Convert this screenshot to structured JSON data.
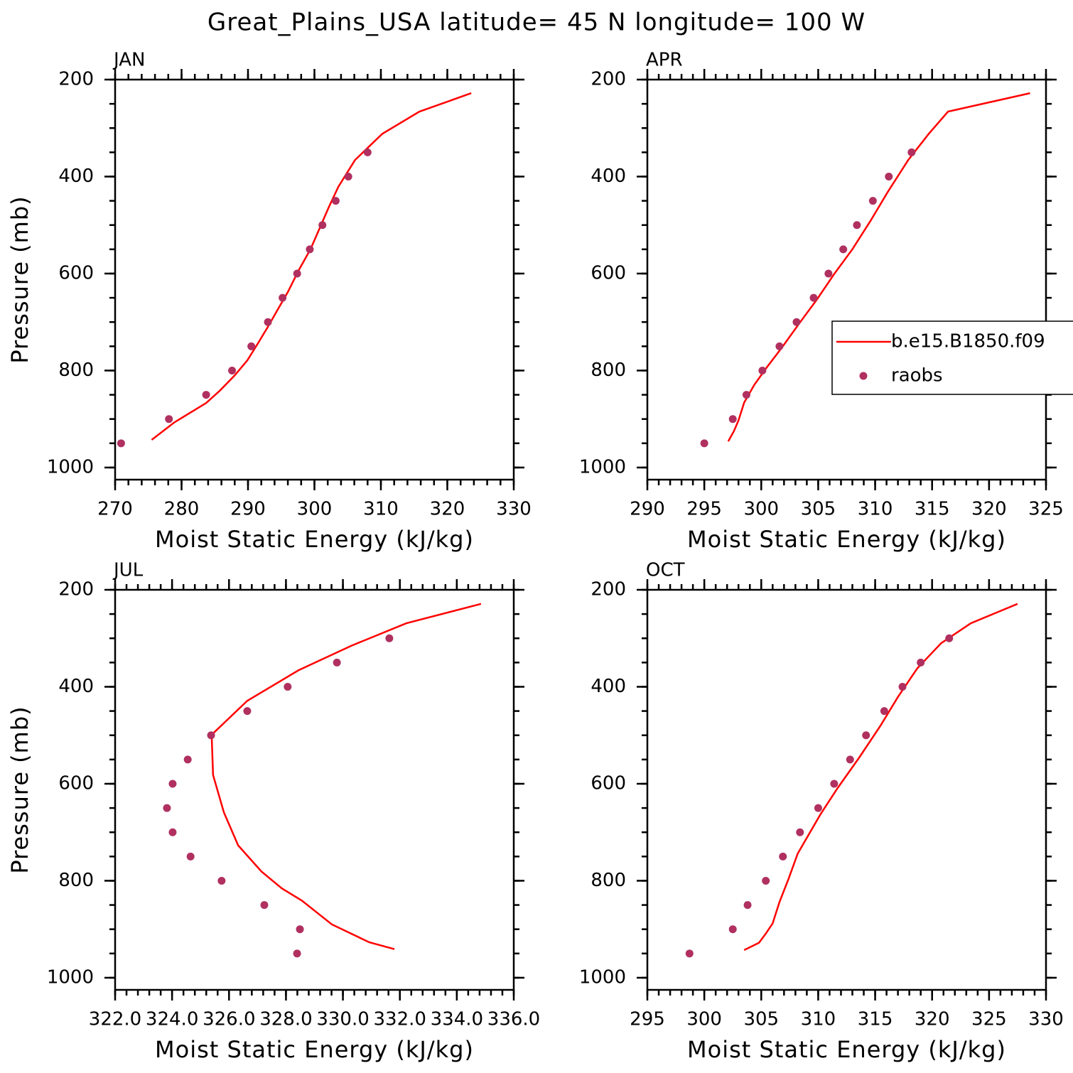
{
  "title": "Great_Plains_USA  latitude= 45 N longitude= 100 W",
  "chart_data": [
    {
      "type": "line",
      "title": "JAN",
      "xlabel": "Moist Static Energy (kJ/kg)",
      "ylabel": "Pressure (mb)",
      "xlim": [
        270,
        330
      ],
      "xticks": [
        270,
        280,
        290,
        300,
        310,
        320,
        330
      ],
      "xminor": 2,
      "ylim": [
        200,
        1025
      ],
      "yticks": [
        200,
        400,
        600,
        800,
        1000
      ],
      "yminor": 50,
      "y_inverted": true,
      "series": [
        {
          "type": "line",
          "color": "#ff0000",
          "x": [
            275.5,
            278.9,
            283.7,
            285.8,
            288.0,
            289.9,
            291.4,
            292.9,
            294.4,
            296.0,
            297.6,
            299.4,
            300.8,
            302.2,
            303.6,
            306.1,
            310.2,
            315.8,
            323.6
          ],
          "values": [
            943,
            907,
            867,
            841,
            810,
            779,
            746,
            712,
            676,
            638,
            594,
            550,
            506,
            462,
            421,
            366,
            312,
            266,
            228
          ]
        },
        {
          "type": "scatter",
          "color": "#b03060",
          "x": [
            270.9,
            278.1,
            283.7,
            287.6,
            290.5,
            293.0,
            295.2,
            297.4,
            299.3,
            301.2,
            303.2,
            305.1,
            308.0
          ],
          "values": [
            950,
            900,
            850,
            800,
            750,
            700,
            650,
            600,
            550,
            500,
            450,
            400,
            350
          ]
        }
      ]
    },
    {
      "type": "line",
      "title": "APR",
      "xlabel": "Moist Static Energy (kJ/kg)",
      "xlim": [
        290,
        325
      ],
      "xticks": [
        290,
        295,
        300,
        305,
        310,
        315,
        320,
        325
      ],
      "xminor": 1,
      "ylim": [
        200,
        1025
      ],
      "yticks": [
        200,
        400,
        600,
        800,
        1000
      ],
      "yminor": 50,
      "y_inverted": true,
      "legend": "right",
      "series": [
        {
          "type": "line",
          "name": "b.e15.B1850.f09",
          "color": "#ff0000",
          "x": [
            297.1,
            297.6,
            298.0,
            298.5,
            299.4,
            300.5,
            301.8,
            303.3,
            304.9,
            306.4,
            308.0,
            309.6,
            311.1,
            312.9,
            314.7,
            316.4,
            323.6
          ],
          "values": [
            946,
            925,
            903,
            866,
            829,
            793,
            753,
            704,
            653,
            601,
            550,
            491,
            432,
            366,
            312,
            266,
            228
          ]
        },
        {
          "type": "scatter",
          "name": "raobs",
          "color": "#b03060",
          "x": [
            295.0,
            297.5,
            298.7,
            300.1,
            301.6,
            303.1,
            304.6,
            305.9,
            307.2,
            308.4,
            309.8,
            311.2,
            313.2
          ],
          "values": [
            950,
            900,
            850,
            800,
            750,
            700,
            650,
            600,
            550,
            500,
            450,
            400,
            350
          ]
        }
      ]
    },
    {
      "type": "line",
      "title": "JUL",
      "xlabel": "Moist Static Energy (kJ/kg)",
      "ylabel": "Pressure (mb)",
      "xlim": [
        322,
        336
      ],
      "xticks": [
        {
          "value": 322,
          "label": "322.0"
        },
        {
          "value": 324,
          "label": "324.0"
        },
        {
          "value": 326,
          "label": "326.0"
        },
        {
          "value": 328,
          "label": "328.0"
        },
        {
          "value": 330,
          "label": "330.0"
        },
        {
          "value": 332,
          "label": "332.0"
        },
        {
          "value": 334,
          "label": "334.0"
        },
        {
          "value": 336,
          "label": "336.0"
        }
      ],
      "xminor": 0.4,
      "ylim": [
        200,
        1025
      ],
      "yticks": [
        200,
        400,
        600,
        800,
        1000
      ],
      "yminor": 50,
      "y_inverted": true,
      "series": [
        {
          "type": "line",
          "color": "#ff0000",
          "x": [
            331.81,
            330.93,
            329.61,
            328.56,
            327.86,
            327.14,
            326.32,
            325.82,
            325.44,
            325.39,
            326.64,
            328.44,
            330.31,
            332.23,
            334.85
          ],
          "values": [
            941,
            927,
            890,
            841,
            816,
            781,
            727,
            659,
            582,
            499,
            429,
            366,
            315,
            269,
            229
          ]
        },
        {
          "type": "scatter",
          "color": "#b03060",
          "x": [
            328.39,
            328.49,
            327.24,
            325.74,
            324.65,
            324.02,
            323.82,
            324.02,
            324.55,
            325.37,
            326.64,
            328.06,
            329.79,
            331.63
          ],
          "values": [
            950,
            900,
            850,
            800,
            750,
            700,
            650,
            600,
            550,
            500,
            450,
            400,
            350,
            300
          ]
        }
      ]
    },
    {
      "type": "line",
      "title": "OCT",
      "xlabel": "Moist Static Energy (kJ/kg)",
      "xlim": [
        295,
        330
      ],
      "xticks": [
        295,
        300,
        305,
        310,
        315,
        320,
        325,
        330
      ],
      "xminor": 1,
      "ylim": [
        200,
        1025
      ],
      "yticks": [
        200,
        400,
        600,
        800,
        1000
      ],
      "yminor": 50,
      "y_inverted": true,
      "series": [
        {
          "type": "line",
          "color": "#ff0000",
          "x": [
            303.5,
            304.8,
            305.4,
            306.0,
            306.6,
            307.4,
            308.2,
            310.2,
            311.7,
            313.6,
            315.5,
            317.0,
            318.7,
            320.8,
            323.4,
            327.5
          ],
          "values": [
            943,
            928,
            909,
            888,
            844,
            796,
            744,
            663,
            609,
            546,
            479,
            421,
            362,
            310,
            269,
            229
          ]
        },
        {
          "type": "scatter",
          "color": "#b03060",
          "x": [
            298.7,
            302.5,
            303.8,
            305.4,
            306.9,
            308.4,
            310.0,
            311.4,
            312.8,
            314.2,
            315.8,
            317.4,
            319.0,
            321.5
          ],
          "values": [
            950,
            900,
            850,
            800,
            750,
            700,
            650,
            600,
            550,
            500,
            450,
            400,
            350,
            300
          ]
        }
      ]
    }
  ]
}
